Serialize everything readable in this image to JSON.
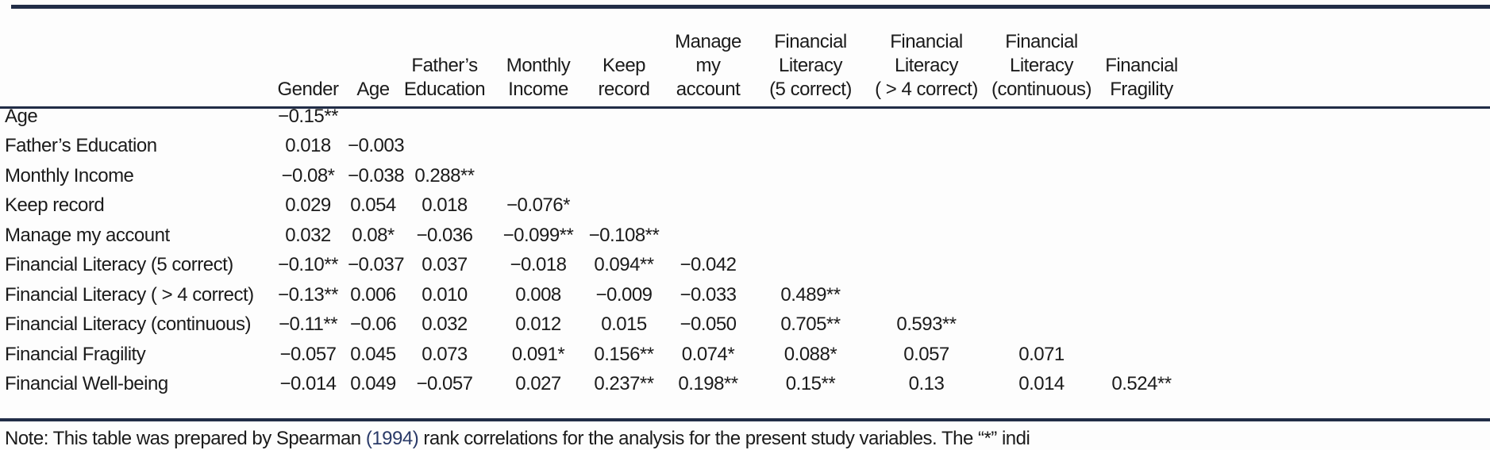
{
  "table": {
    "columns": [
      {
        "lines": [
          "Gender"
        ]
      },
      {
        "lines": [
          "Age"
        ]
      },
      {
        "lines": [
          "Father’s",
          "Education"
        ]
      },
      {
        "lines": [
          "Monthly",
          "Income"
        ]
      },
      {
        "lines": [
          "Keep",
          "record"
        ]
      },
      {
        "lines": [
          "Manage",
          "my",
          "account"
        ]
      },
      {
        "lines": [
          "Financial",
          "Literacy",
          "(5 correct)"
        ]
      },
      {
        "lines": [
          "Financial",
          "Literacy",
          "( > 4 correct)"
        ]
      },
      {
        "lines": [
          "Financial",
          "Literacy",
          "(continuous)"
        ]
      },
      {
        "lines": [
          "Financial",
          "Fragility"
        ]
      }
    ],
    "rows": [
      {
        "label": "Age",
        "values": [
          "−0.15**",
          "",
          "",
          "",
          "",
          "",
          "",
          "",
          "",
          ""
        ]
      },
      {
        "label": "Father’s Education",
        "values": [
          "0.018",
          "−0.003",
          "",
          "",
          "",
          "",
          "",
          "",
          "",
          ""
        ]
      },
      {
        "label": "Monthly Income",
        "values": [
          "−0.08*",
          "−0.038",
          "0.288**",
          "",
          "",
          "",
          "",
          "",
          "",
          ""
        ]
      },
      {
        "label": "Keep record",
        "values": [
          "0.029",
          "0.054",
          "0.018",
          "−0.076*",
          "",
          "",
          "",
          "",
          "",
          ""
        ]
      },
      {
        "label": "Manage my account",
        "values": [
          "0.032",
          "0.08*",
          "−0.036",
          "−0.099**",
          "−0.108**",
          "",
          "",
          "",
          "",
          ""
        ]
      },
      {
        "label": "Financial Literacy (5 correct)",
        "values": [
          "−0.10**",
          "−0.037",
          "0.037",
          "−0.018",
          "0.094**",
          "−0.042",
          "",
          "",
          "",
          ""
        ]
      },
      {
        "label": "Financial Literacy ( > 4 correct)",
        "values": [
          "−0.13**",
          "0.006",
          "0.010",
          "0.008",
          "−0.009",
          "−0.033",
          "0.489**",
          "",
          "",
          ""
        ]
      },
      {
        "label": "Financial Literacy (continuous)",
        "values": [
          "−0.11**",
          "−0.06",
          "0.032",
          "0.012",
          "0.015",
          "−0.050",
          "0.705**",
          "0.593**",
          "",
          ""
        ]
      },
      {
        "label": "Financial Fragility",
        "values": [
          "−0.057",
          "0.045",
          "0.073",
          "0.091*",
          "0.156**",
          "0.074*",
          "0.088*",
          "0.057",
          "0.071",
          ""
        ]
      },
      {
        "label": "Financial Well-being",
        "values": [
          "−0.014",
          "0.049",
          "−0.057",
          "0.027",
          "0.237**",
          "0.198**",
          "0.15**",
          "0.13",
          "0.014",
          "0.524**"
        ]
      }
    ]
  },
  "note": {
    "prefix": "Note: This table was prepared by Spearman ",
    "citation": "(1994)",
    "suffix": " rank correlations for the analysis for the present study variables. The “*” indi"
  },
  "colors": {
    "rule": "#212d47",
    "text": "#1b1b1b",
    "citation": "#2a3a68"
  }
}
